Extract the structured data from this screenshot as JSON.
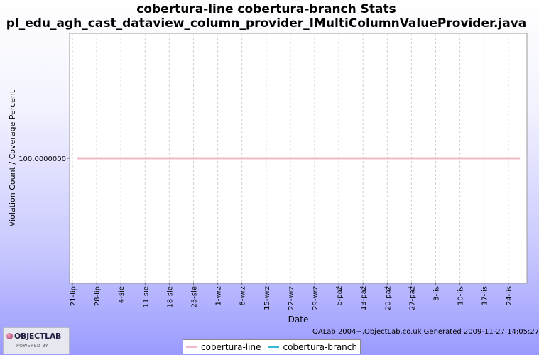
{
  "chart_data": {
    "type": "line",
    "title": "cobertura-line cobertura-branch  Stats",
    "subtitle": "pl_edu_agh_cast_dataview_column_provider_IMultiColumnValueProvider.java",
    "xlabel": "Date",
    "ylabel": "Violation Count / Coverage Percent",
    "x_ticks": [
      "21-lip",
      "28-lip",
      "4-sie",
      "11-sie",
      "18-sie",
      "25-sie",
      "1-wrz",
      "8-wrz",
      "15-wrz",
      "22-wrz",
      "29-wrz",
      "6-paź",
      "13-paź",
      "20-paź",
      "27-paź",
      "3-lis",
      "10-lis",
      "17-lis",
      "24-lis"
    ],
    "y_ticks": [
      {
        "value": 100,
        "label": "100,0000000"
      }
    ],
    "ylim": [
      50,
      150
    ],
    "x": [
      "2009-07-21",
      "2009-11-27"
    ],
    "series": [
      {
        "name": "cobertura-line",
        "color": "#f4b9c6",
        "values": [
          100,
          100
        ]
      },
      {
        "name": "cobertura-branch",
        "color": "#33bbd6",
        "values": [
          100,
          100
        ]
      }
    ],
    "grid": true,
    "legend": "bottom-center"
  },
  "footer": {
    "generated": "QALab 2004+,ObjectLab.co.uk Generated 2009-11-27 14:05:27"
  },
  "logo": {
    "name": "OBJECTLAB",
    "tagline": "POWERED BY"
  }
}
